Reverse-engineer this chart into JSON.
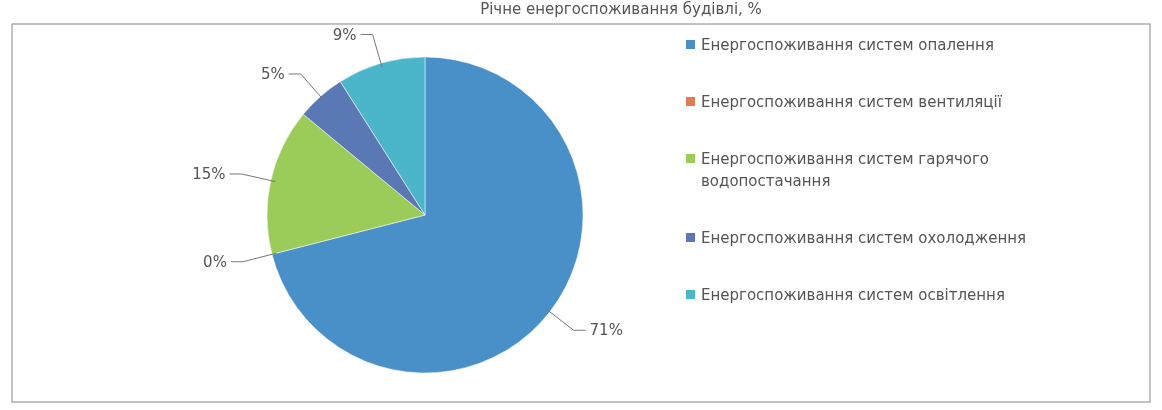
{
  "chart_data": {
    "type": "pie",
    "title": "Річне енергоспоживання будівлі, %",
    "categories": [
      "Енергоспоживання систем опалення",
      "Енергоспоживання систем вентиляції",
      "Енергоспоживання систем гарячого водопостачання",
      "Енергоспоживання систем охолодження",
      "Енергоспоживання систем освітлення"
    ],
    "values": [
      71,
      0,
      15,
      5,
      9
    ],
    "value_labels": [
      "71%",
      "0%",
      "15%",
      "5%",
      "9%"
    ],
    "colors": [
      "#4a90c8",
      "#e07b54",
      "#9bcc5a",
      "#5a78b3",
      "#4bb5c9"
    ],
    "legend": "right"
  }
}
